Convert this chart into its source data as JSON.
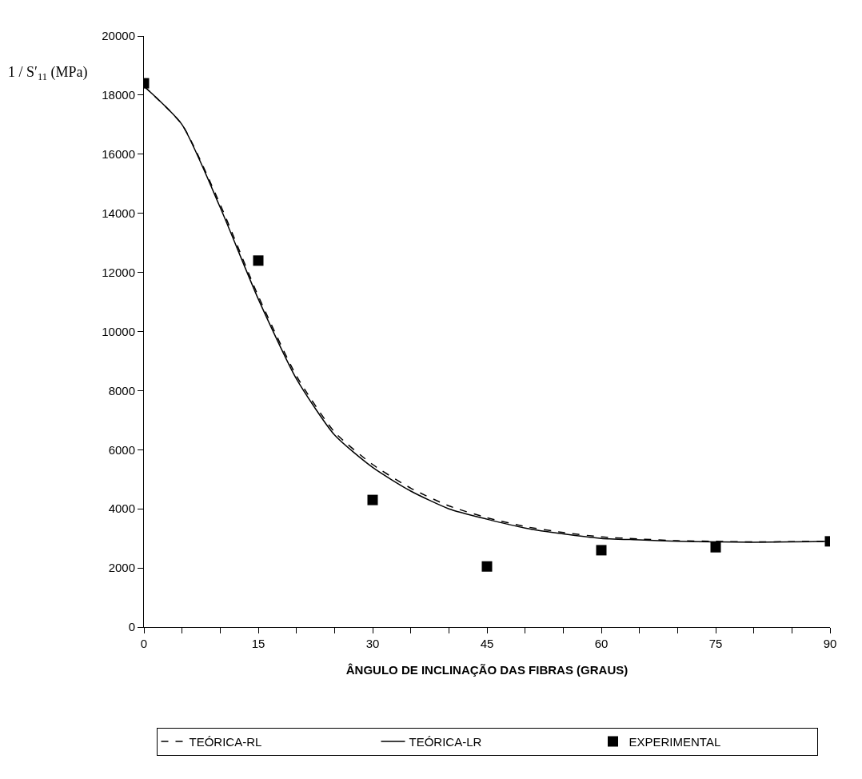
{
  "chart_data": {
    "type": "line",
    "xlabel": "ÂNGULO DE INCLINAÇÃO DAS FIBRAS (GRAUS)",
    "ylabel": "1 / S′$_{11}$ (MPa)",
    "series": [
      {
        "name": "TEÓRICA-RL",
        "color": "#000000",
        "line_style": "dashed",
        "x": [
          0,
          5,
          10,
          15,
          20,
          25,
          30,
          35,
          40,
          45,
          50,
          55,
          60,
          65,
          70,
          75,
          80,
          85,
          90
        ],
        "values": [
          18300,
          17000,
          14300,
          11200,
          8500,
          6600,
          5500,
          4700,
          4100,
          3700,
          3400,
          3200,
          3050,
          2980,
          2920,
          2900,
          2880,
          2890,
          2900
        ]
      },
      {
        "name": "TEÓRICA-LR",
        "color": "#000000",
        "line_style": "solid",
        "x": [
          0,
          5,
          10,
          15,
          20,
          25,
          30,
          35,
          40,
          45,
          50,
          55,
          60,
          65,
          70,
          75,
          80,
          85,
          90
        ],
        "values": [
          18300,
          17000,
          14200,
          11100,
          8400,
          6500,
          5400,
          4600,
          4000,
          3650,
          3350,
          3150,
          3000,
          2950,
          2900,
          2880,
          2870,
          2880,
          2900
        ]
      },
      {
        "name": "EXPERIMENTAL",
        "color": "#000000",
        "type": "scatter",
        "marker": "square",
        "x": [
          0,
          15,
          30,
          45,
          60,
          75,
          90
        ],
        "values": [
          18400,
          12400,
          4300,
          2050,
          2600,
          2700,
          2900
        ]
      }
    ],
    "xlim": [
      0,
      90
    ],
    "xticks": [
      0,
      {
        "value": 5,
        "label": null
      },
      {
        "value": 10,
        "label": null
      },
      15,
      {
        "value": 20,
        "label": null
      },
      {
        "value": 25,
        "label": null
      },
      30,
      {
        "value": 35,
        "label": null
      },
      {
        "value": 40,
        "label": null
      },
      45,
      {
        "value": 50,
        "label": null
      },
      {
        "value": 55,
        "label": null
      },
      60,
      {
        "value": 65,
        "label": null
      },
      {
        "value": 70,
        "label": null
      },
      75,
      {
        "value": 80,
        "label": null
      },
      {
        "value": 85,
        "label": null
      },
      90
    ],
    "ylim": [
      0,
      20000
    ],
    "yticks": [
      0,
      2000,
      4000,
      6000,
      8000,
      10000,
      12000,
      14000,
      16000,
      18000,
      20000
    ],
    "grid": false,
    "legend": "bottom"
  }
}
